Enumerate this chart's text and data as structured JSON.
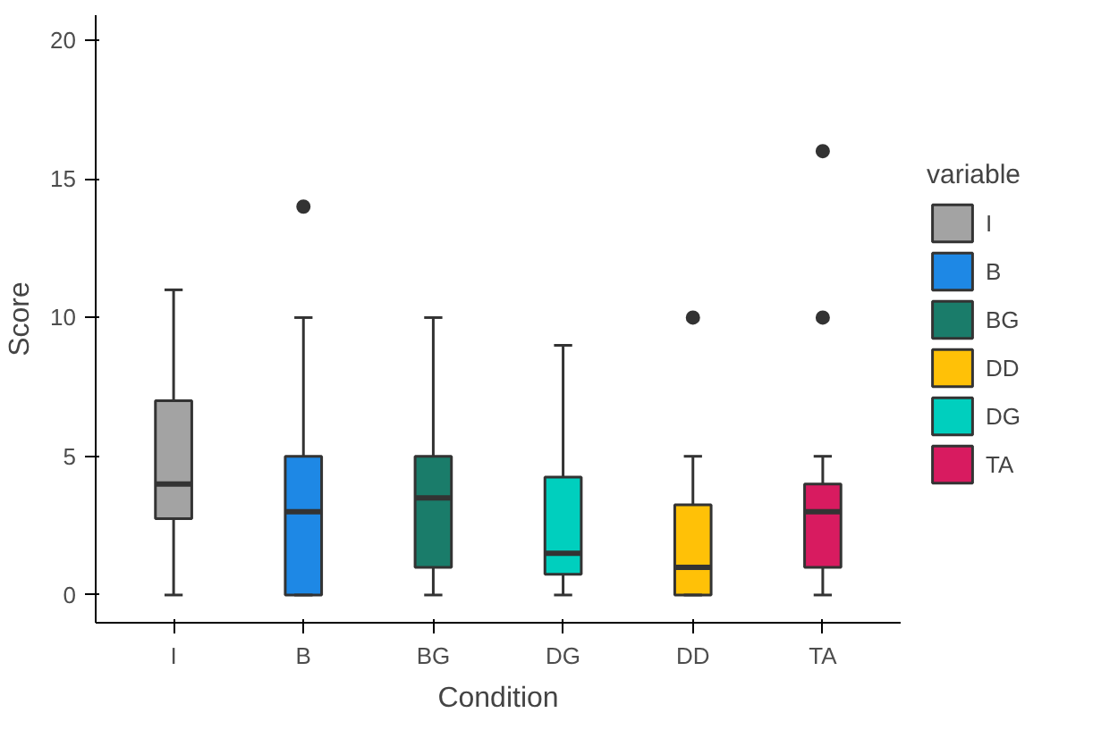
{
  "chart_data": {
    "type": "box",
    "xlabel": "Condition",
    "ylabel": "Score",
    "legend_title": "variable",
    "legend": "right",
    "grid": false,
    "categories": [
      "I",
      "B",
      "BG",
      "DG",
      "DD",
      "TA"
    ],
    "ylim": [
      -1,
      20.9
    ],
    "yticks": [
      0,
      5,
      10,
      15,
      20
    ],
    "series": [
      {
        "name": "I",
        "color": "#a3a3a3",
        "boxes": [
          {
            "low": 0,
            "q1": 2.75,
            "median": 4,
            "q3": 7,
            "high": 11
          },
          null,
          null,
          null,
          null,
          null
        ]
      },
      {
        "name": "B",
        "color": "#1e88e5",
        "boxes": [
          null,
          {
            "low": 0,
            "q1": 0,
            "median": 3,
            "q3": 5,
            "high": 10,
            "outliers": [
              14
            ]
          },
          null,
          null,
          null,
          null
        ]
      },
      {
        "name": "BG",
        "color": "#1a7c6a",
        "boxes": [
          null,
          null,
          {
            "low": 0,
            "q1": 1,
            "median": 3.5,
            "q3": 5,
            "high": 10
          },
          null,
          null,
          null
        ]
      },
      {
        "name": "DD",
        "color": "#ffc107",
        "boxes": [
          null,
          null,
          null,
          null,
          {
            "low": 0,
            "q1": 0,
            "median": 1,
            "q3": 3.25,
            "high": 5,
            "outliers": [
              10
            ]
          },
          null
        ]
      },
      {
        "name": "DG",
        "color": "#00cfbe",
        "boxes": [
          null,
          null,
          null,
          {
            "low": 0,
            "q1": 0.75,
            "median": 1.5,
            "q3": 4.25,
            "high": 9
          },
          null,
          null
        ]
      },
      {
        "name": "TA",
        "color": "#d81b60",
        "boxes": [
          null,
          null,
          null,
          null,
          null,
          {
            "low": 0,
            "q1": 1,
            "median": 3,
            "q3": 4,
            "high": 5,
            "outliers": [
              10,
              16
            ]
          }
        ]
      }
    ]
  }
}
